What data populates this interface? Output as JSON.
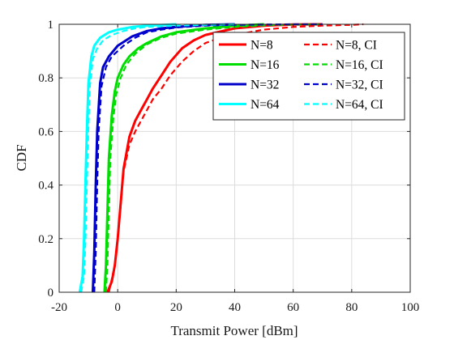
{
  "chart_data": {
    "type": "line",
    "title": "",
    "xlabel": "Transmit Power [dBm]",
    "ylabel": "CDF",
    "xlim": [
      -20,
      100
    ],
    "ylim": [
      0,
      1
    ],
    "xticks": [
      -20,
      0,
      20,
      40,
      60,
      80,
      100
    ],
    "yticks": [
      0,
      0.2,
      0.4,
      0.6,
      0.8,
      1
    ],
    "xtick_labels": [
      "-20",
      "0",
      "20",
      "40",
      "60",
      "80",
      "100"
    ],
    "ytick_labels": [
      "0",
      "0.2",
      "0.4",
      "0.6",
      "0.8",
      "1"
    ],
    "grid": true,
    "legend_position": "top-right",
    "legend_columns": 2,
    "series": [
      {
        "name": "N=8",
        "color": "#ff0000",
        "style": "solid",
        "x": [
          -3.5,
          -2,
          -1,
          0,
          1,
          2,
          4,
          6,
          8,
          10,
          12,
          15,
          18,
          22,
          26,
          30,
          40,
          50,
          60,
          70
        ],
        "y": [
          0,
          0.04,
          0.1,
          0.2,
          0.33,
          0.46,
          0.58,
          0.64,
          0.68,
          0.72,
          0.76,
          0.81,
          0.86,
          0.91,
          0.94,
          0.96,
          0.985,
          0.995,
          0.999,
          1
        ]
      },
      {
        "name": "N=16",
        "color": "#00dd00",
        "style": "solid",
        "x": [
          -4.5,
          -4,
          -3.5,
          -3,
          -2,
          -1,
          0,
          2,
          4,
          7,
          10,
          15,
          20,
          30,
          40,
          50
        ],
        "y": [
          0,
          0.1,
          0.3,
          0.5,
          0.66,
          0.75,
          0.8,
          0.85,
          0.88,
          0.91,
          0.93,
          0.955,
          0.97,
          0.985,
          0.995,
          1
        ]
      },
      {
        "name": "N=32",
        "color": "#0000cc",
        "style": "solid",
        "x": [
          -8.5,
          -8,
          -7.5,
          -7,
          -6,
          -5,
          -3,
          0,
          5,
          10,
          15,
          20,
          30,
          40
        ],
        "y": [
          0,
          0.15,
          0.4,
          0.6,
          0.78,
          0.84,
          0.88,
          0.92,
          0.955,
          0.975,
          0.985,
          0.99,
          0.998,
          1
        ]
      },
      {
        "name": "N=64",
        "color": "#00ffff",
        "style": "solid",
        "x": [
          -13,
          -12,
          -11.5,
          -11,
          -10.5,
          -10,
          -9,
          -8,
          -6,
          -3,
          0,
          5,
          10,
          20
        ],
        "y": [
          0,
          0.06,
          0.2,
          0.42,
          0.62,
          0.78,
          0.88,
          0.92,
          0.95,
          0.97,
          0.98,
          0.99,
          0.995,
          1
        ]
      },
      {
        "name": "N=8, CI",
        "color": "#ff0000",
        "style": "dashed",
        "x": [
          -3,
          -1,
          0,
          1,
          2,
          4,
          6,
          8,
          10,
          12,
          15,
          18,
          22,
          26,
          30,
          35,
          40,
          50,
          60,
          70,
          80,
          84
        ],
        "y": [
          0,
          0.1,
          0.2,
          0.32,
          0.45,
          0.55,
          0.6,
          0.64,
          0.68,
          0.72,
          0.76,
          0.81,
          0.86,
          0.9,
          0.93,
          0.95,
          0.96,
          0.98,
          0.99,
          0.995,
          0.998,
          1
        ]
      },
      {
        "name": "N=16, CI",
        "color": "#00dd00",
        "style": "dashed",
        "x": [
          -4,
          -3.5,
          -3,
          -2.5,
          -1.5,
          -0.5,
          1,
          3,
          6,
          10,
          15,
          20,
          30,
          40,
          50,
          60,
          70
        ],
        "y": [
          0,
          0.1,
          0.3,
          0.5,
          0.65,
          0.74,
          0.8,
          0.85,
          0.89,
          0.925,
          0.95,
          0.965,
          0.98,
          0.99,
          0.996,
          0.999,
          1
        ]
      },
      {
        "name": "N=32, CI",
        "color": "#0000cc",
        "style": "dashed",
        "x": [
          -8,
          -7.5,
          -7,
          -6.5,
          -5.5,
          -4,
          -2,
          2,
          6,
          10,
          15,
          20,
          30,
          40,
          50,
          60,
          70
        ],
        "y": [
          0,
          0.15,
          0.4,
          0.6,
          0.77,
          0.84,
          0.88,
          0.92,
          0.95,
          0.97,
          0.98,
          0.988,
          0.995,
          0.998,
          0.999,
          1,
          1
        ]
      },
      {
        "name": "N=64, CI",
        "color": "#00ffff",
        "style": "dashed",
        "x": [
          -12.5,
          -11.5,
          -11,
          -10.5,
          -10,
          -9.5,
          -8.5,
          -7,
          -5,
          -2,
          2,
          6,
          10,
          20,
          30,
          40
        ],
        "y": [
          0,
          0.06,
          0.2,
          0.42,
          0.62,
          0.77,
          0.87,
          0.91,
          0.94,
          0.96,
          0.975,
          0.985,
          0.99,
          0.995,
          0.998,
          1
        ]
      }
    ]
  }
}
